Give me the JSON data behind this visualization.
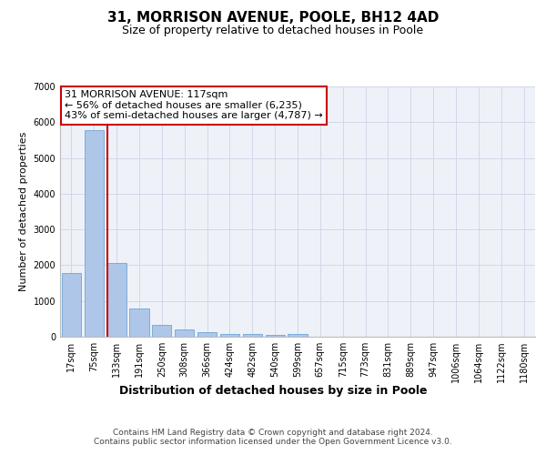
{
  "title1": "31, MORRISON AVENUE, POOLE, BH12 4AD",
  "title2": "Size of property relative to detached houses in Poole",
  "xlabel": "Distribution of detached houses by size in Poole",
  "ylabel": "Number of detached properties",
  "categories": [
    "17sqm",
    "75sqm",
    "133sqm",
    "191sqm",
    "250sqm",
    "308sqm",
    "366sqm",
    "424sqm",
    "482sqm",
    "540sqm",
    "599sqm",
    "657sqm",
    "715sqm",
    "773sqm",
    "831sqm",
    "889sqm",
    "947sqm",
    "1006sqm",
    "1064sqm",
    "1122sqm",
    "1180sqm"
  ],
  "values": [
    1780,
    5780,
    2050,
    800,
    340,
    210,
    130,
    85,
    65,
    55,
    75,
    0,
    0,
    0,
    0,
    0,
    0,
    0,
    0,
    0,
    0
  ],
  "bar_color": "#aec6e8",
  "bar_edge_color": "#5b9bd5",
  "vline_x_index": 2,
  "vline_color": "#cc0000",
  "annotation_text": "31 MORRISON AVENUE: 117sqm\n← 56% of detached houses are smaller (6,235)\n43% of semi-detached houses are larger (4,787) →",
  "annotation_box_color": "#ffffff",
  "annotation_box_edge": "#cc0000",
  "ylim": [
    0,
    7000
  ],
  "yticks": [
    0,
    1000,
    2000,
    3000,
    4000,
    5000,
    6000,
    7000
  ],
  "grid_color": "#d0d8e8",
  "bg_color": "#eef2f8",
  "footer": "Contains HM Land Registry data © Crown copyright and database right 2024.\nContains public sector information licensed under the Open Government Licence v3.0.",
  "title1_fontsize": 11,
  "title2_fontsize": 9,
  "xlabel_fontsize": 9,
  "ylabel_fontsize": 8,
  "tick_fontsize": 7,
  "annotation_fontsize": 8,
  "footer_fontsize": 6.5
}
